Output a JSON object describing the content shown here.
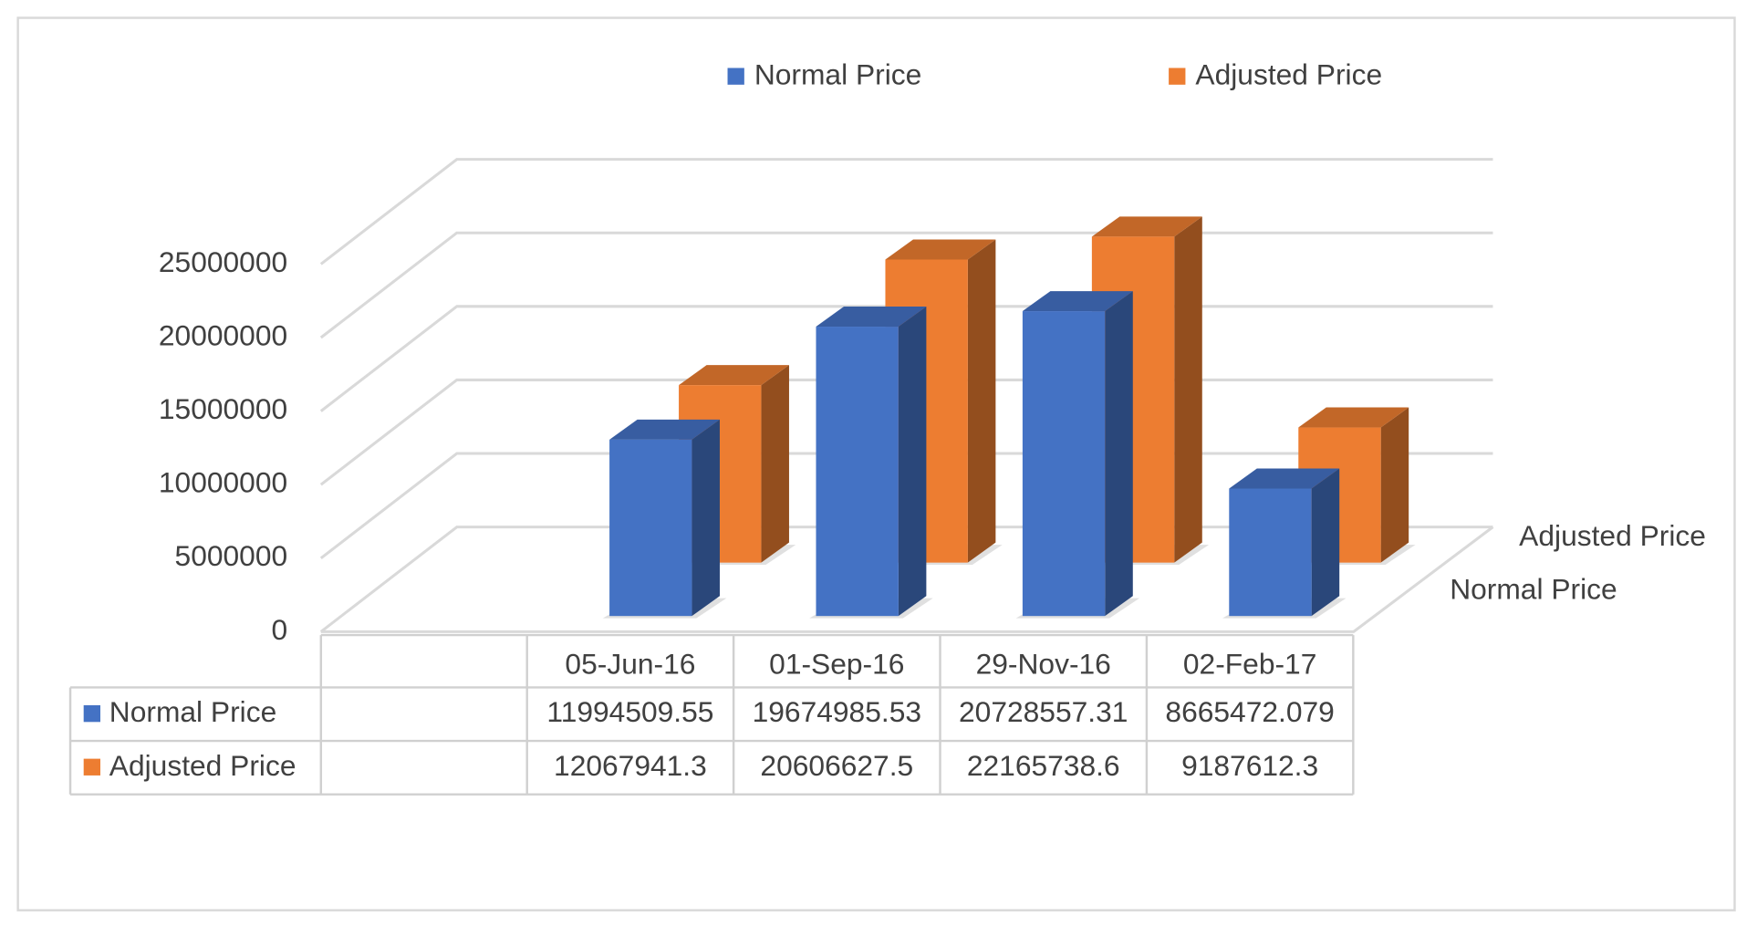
{
  "chart_data": {
    "type": "bar3d",
    "categories": [
      "05-Jun-16",
      "01-Sep-16",
      "29-Nov-16",
      "02-Feb-17"
    ],
    "series": [
      {
        "name": "Normal Price",
        "color": "#4472c4",
        "values": [
          11994509.55,
          19674985.53,
          20728557.31,
          8665472.079
        ]
      },
      {
        "name": "Adjusted Price",
        "color": "#ed7d31",
        "values": [
          12067941.3,
          20606627.5,
          22165738.6,
          9187612.3
        ]
      }
    ],
    "ylim": [
      0,
      25000000
    ],
    "yticks": [
      0,
      5000000,
      10000000,
      15000000,
      20000000,
      25000000
    ],
    "grid": true,
    "legend": "top"
  }
}
